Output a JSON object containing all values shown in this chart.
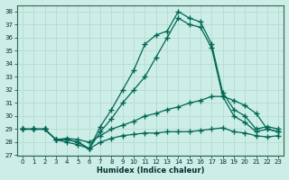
{
  "xlabel": "Humidex (Indice chaleur)",
  "background_color": "#cceee6",
  "grid_color": "#b8ddd5",
  "line_color": "#006655",
  "xlim": [
    -0.5,
    23.5
  ],
  "ylim": [
    27,
    38.5
  ],
  "yticks": [
    27,
    28,
    29,
    30,
    31,
    32,
    33,
    34,
    35,
    36,
    37,
    38
  ],
  "xticks": [
    0,
    1,
    2,
    3,
    4,
    5,
    6,
    7,
    8,
    9,
    10,
    11,
    12,
    13,
    14,
    15,
    16,
    17,
    18,
    19,
    20,
    21,
    22,
    23
  ],
  "x": [
    0,
    1,
    2,
    3,
    4,
    5,
    6,
    7,
    8,
    9,
    10,
    11,
    12,
    13,
    14,
    15,
    16,
    17,
    18,
    19,
    20,
    21,
    22,
    23
  ],
  "line_main": [
    29.0,
    29.0,
    29.0,
    28.2,
    28.2,
    28.0,
    27.5,
    29.2,
    30.5,
    32.0,
    33.5,
    35.5,
    36.2,
    36.5,
    38.0,
    37.5,
    37.2,
    35.5,
    31.8,
    30.5,
    30.0,
    29.0,
    29.2,
    29.0
  ],
  "line2": [
    29.0,
    29.0,
    29.0,
    28.2,
    28.2,
    28.0,
    27.5,
    28.8,
    29.8,
    31.0,
    32.0,
    33.0,
    34.5,
    36.0,
    37.5,
    37.0,
    36.8,
    35.2,
    31.5,
    30.0,
    29.5,
    28.8,
    29.0,
    28.8
  ],
  "line3": [
    29.0,
    29.0,
    29.0,
    28.2,
    28.3,
    28.2,
    28.0,
    28.5,
    29.0,
    29.3,
    29.6,
    30.0,
    30.2,
    30.5,
    30.7,
    31.0,
    31.2,
    31.5,
    31.5,
    31.2,
    30.8,
    30.2,
    29.0,
    28.8
  ],
  "line4": [
    29.0,
    29.0,
    29.0,
    28.2,
    28.0,
    27.8,
    27.5,
    28.0,
    28.3,
    28.5,
    28.6,
    28.7,
    28.7,
    28.8,
    28.8,
    28.8,
    28.9,
    29.0,
    29.1,
    28.8,
    28.7,
    28.5,
    28.4,
    28.5
  ]
}
